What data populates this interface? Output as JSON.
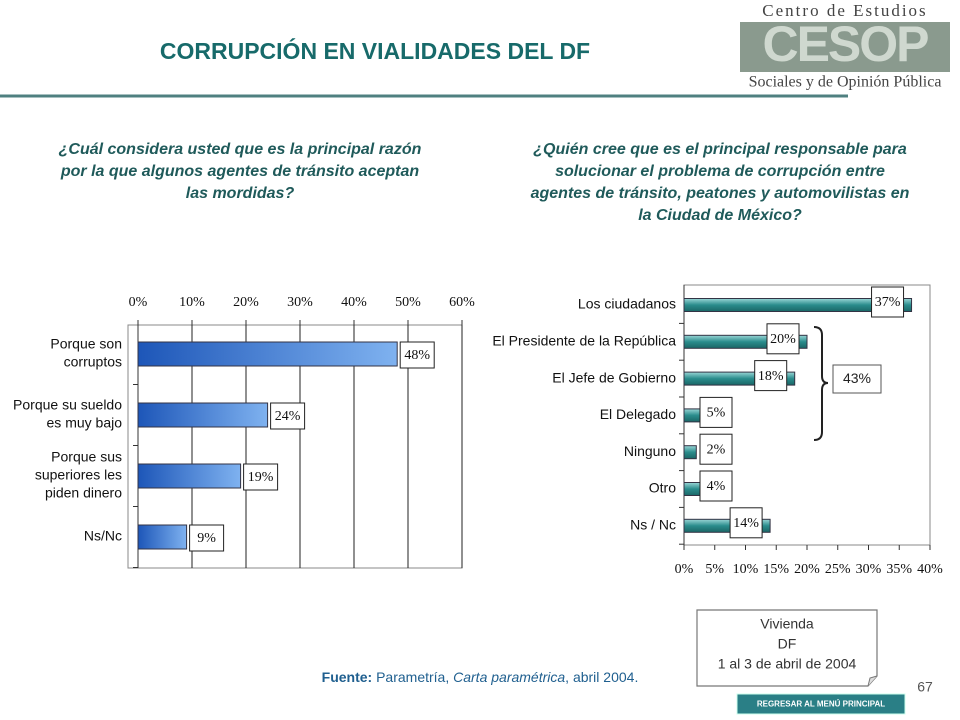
{
  "header": {
    "title": "CORRUPCIÓN EN VIALIDADES DEL DF"
  },
  "logo": {
    "top": "Centro de Estudios",
    "mark": "CESOP",
    "bottom": "Sociales y de Opinión Pública"
  },
  "chart_data": [
    {
      "type": "bar",
      "orientation": "horizontal",
      "title": [
        "¿Cuál considera usted que es la principal razón",
        "por la que algunos agentes de tránsito aceptan",
        "las mordidas?"
      ],
      "categories": [
        [
          "Porque son",
          "corruptos"
        ],
        [
          "Porque su sueldo",
          "es muy bajo"
        ],
        [
          "Porque sus",
          "superiores les",
          "piden dinero"
        ],
        [
          "Ns/Nc"
        ]
      ],
      "values": [
        48,
        24,
        19,
        9
      ],
      "value_labels": [
        "48%",
        "24%",
        "19%",
        "9%"
      ],
      "color": "#2f6fd0",
      "xlim": [
        0,
        60
      ],
      "xticks": [
        {
          "value": 0,
          "label": "0%"
        },
        {
          "value": 10,
          "label": "10%"
        },
        {
          "value": 20,
          "label": "20%"
        },
        {
          "value": 30,
          "label": "30%"
        },
        {
          "value": 40,
          "label": "40%"
        },
        {
          "value": 50,
          "label": "50%"
        },
        {
          "value": 60,
          "label": "60%"
        }
      ],
      "tick_side": "top",
      "grid": true
    },
    {
      "type": "bar",
      "orientation": "horizontal",
      "title": [
        "¿Quién cree que es el principal responsable para",
        "solucionar el problema de corrupción entre",
        "agentes de tránsito, peatones y automovilistas en",
        "la Ciudad de México?"
      ],
      "categories": [
        [
          "Los ciudadanos"
        ],
        [
          "El Presidente de la República"
        ],
        [
          "El Jefe de Gobierno"
        ],
        [
          "El Delegado"
        ],
        [
          "Ninguno"
        ],
        [
          "Otro"
        ],
        [
          "Ns / Nc"
        ]
      ],
      "values": [
        37,
        20,
        18,
        5,
        2,
        4,
        14
      ],
      "value_labels": [
        "37%",
        "20%",
        "18%",
        "5%",
        "2%",
        "4%",
        "14%"
      ],
      "color": "#2a8c8c",
      "xlim": [
        0,
        40
      ],
      "xticks": [
        {
          "value": 0,
          "label": "0%"
        },
        {
          "value": 5,
          "label": "5%"
        },
        {
          "value": 10,
          "label": "10%"
        },
        {
          "value": 15,
          "label": "15%"
        },
        {
          "value": 20,
          "label": "20%"
        },
        {
          "value": 25,
          "label": "25%"
        },
        {
          "value": 30,
          "label": "30%"
        },
        {
          "value": 35,
          "label": "35%"
        },
        {
          "value": 40,
          "label": "40%"
        }
      ],
      "tick_side": "bottom",
      "grid": false,
      "annotation": "43%"
    }
  ],
  "note": [
    "Vivienda",
    "DF",
    "1 al 3 de abril de 2004"
  ],
  "source": [
    "Fuente:",
    " Parametría, ",
    "Carta paramétrica",
    ", abril 2004."
  ],
  "page_number": "67",
  "button": "REGRESAR AL MENÚ PRINCIPAL"
}
